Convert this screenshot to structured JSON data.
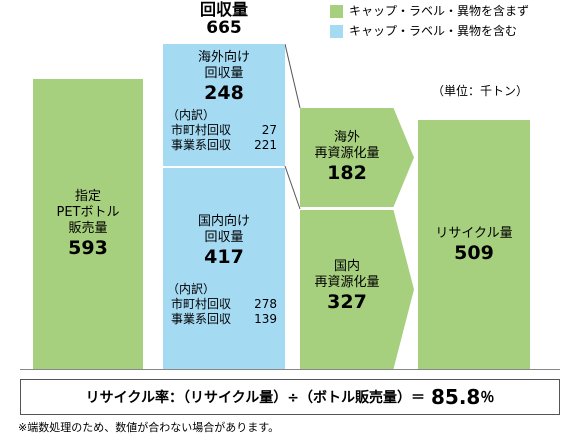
{
  "legend": {
    "items": [
      {
        "label": "キャップ・ラベル・異物を含まず",
        "color": "#a6cf7e"
      },
      {
        "label": "キャップ・ラベル・異物を含む",
        "color": "#a5daf3"
      }
    ]
  },
  "collection_total": {
    "label": "回収量",
    "value": "665"
  },
  "unit": "（単位：千トン）",
  "bottle_sales": {
    "line1": "指定",
    "line2": "PETボトル",
    "line3": "販売量",
    "value": "593"
  },
  "overseas_collection": {
    "line1": "海外向け",
    "line2": "回収量",
    "value": "248",
    "breakdown_label": "（内訳）",
    "rows": [
      {
        "label": "市町村回収",
        "value": "27"
      },
      {
        "label": "事業系回収",
        "value": "221"
      }
    ]
  },
  "domestic_collection": {
    "line1": "国内向け",
    "line2": "回収量",
    "value": "417",
    "breakdown_label": "（内訳）",
    "rows": [
      {
        "label": "市町村回収",
        "value": "278"
      },
      {
        "label": "事業系回収",
        "value": "139"
      }
    ]
  },
  "overseas_resource": {
    "line1": "海外",
    "line2": "再資源化量",
    "value": "182"
  },
  "domestic_resource": {
    "line1": "国内",
    "line2": "再資源化量",
    "value": "327"
  },
  "recycle_amount": {
    "label": "リサイクル量",
    "value": "509"
  },
  "formula": {
    "text": "リサイクル率：（リサイクル量）÷（ボトル販売量）＝",
    "value": "85.8",
    "unit": "％"
  },
  "footnote": "※端数処理のため、数値が合わない場合があります。",
  "colors": {
    "green": "#a6cf7e",
    "blue": "#a5daf3",
    "connector": "#555555"
  }
}
